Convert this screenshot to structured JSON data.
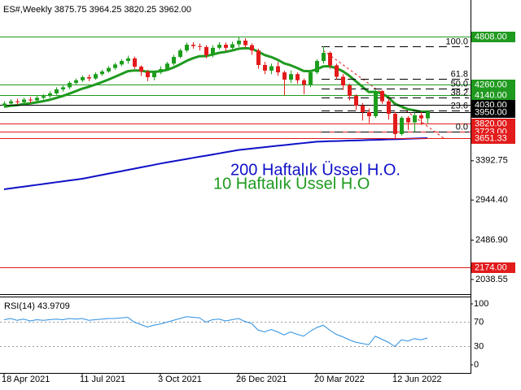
{
  "chart_data": [
    {
      "type": "candlestick",
      "title": "ES#,Weekly  3875.75 3964.25 3820.25 3962.00",
      "categories": [
        "18 Apr 2021",
        null,
        null,
        null,
        null,
        null,
        null,
        null,
        null,
        null,
        null,
        null,
        "11 Jul 2021",
        null,
        null,
        null,
        null,
        null,
        null,
        null,
        null,
        null,
        null,
        null,
        "3 Oct 2021",
        null,
        null,
        null,
        null,
        null,
        null,
        null,
        null,
        null,
        null,
        null,
        "26 Dec 2021",
        null,
        null,
        null,
        null,
        null,
        null,
        null,
        null,
        null,
        null,
        null,
        "20 Mar 2022",
        null,
        null,
        null,
        null,
        null,
        null,
        null,
        null,
        null,
        null,
        null,
        "12 Jun 2022",
        null,
        null,
        null,
        null,
        null
      ],
      "open": [
        4020,
        4045,
        4070,
        4060,
        4090,
        4080,
        4110,
        4130,
        4160,
        4206,
        4230,
        4280,
        4310,
        4345,
        4330,
        4380,
        4410,
        4450,
        4490,
        4530,
        4560,
        4465,
        4410,
        4345,
        4400,
        4438,
        4500,
        4576,
        4650,
        4715,
        4700,
        4690,
        4595,
        4680,
        4715,
        4680,
        4720,
        4762,
        4710,
        4650,
        4484,
        4420,
        4470,
        4400,
        4317,
        4380,
        4310,
        4260,
        4400,
        4530,
        4623,
        4480,
        4350,
        4252,
        4132,
        4020,
        3947,
        3900,
        4187,
        4070,
        3928,
        3697,
        3882,
        3830,
        3910,
        3875.75
      ],
      "high": [
        4070,
        4095,
        4100,
        4110,
        4120,
        4130,
        4150,
        4185,
        4230,
        4250,
        4300,
        4330,
        4365,
        4375,
        4400,
        4430,
        4470,
        4510,
        4550,
        4590,
        4580,
        4480,
        4430,
        4420,
        4470,
        4520,
        4600,
        4670,
        4740,
        4745,
        4730,
        4710,
        4710,
        4745,
        4740,
        4750,
        4808,
        4790,
        4730,
        4670,
        4520,
        4500,
        4520,
        4420,
        4420,
        4400,
        4330,
        4420,
        4550,
        4697,
        4640,
        4500,
        4380,
        4270,
        4150,
        4050,
        3990,
        4200,
        4200,
        4100,
        3950,
        3900,
        3900,
        3940,
        3950,
        3964.25
      ],
      "low": [
        4000,
        4025,
        4030,
        4040,
        4050,
        4060,
        4090,
        4110,
        4145,
        4180,
        4210,
        4260,
        4290,
        4300,
        4315,
        4360,
        4395,
        4430,
        4470,
        4500,
        4440,
        4360,
        4300,
        4310,
        4380,
        4420,
        4480,
        4560,
        4630,
        4670,
        4650,
        4560,
        4570,
        4660,
        4640,
        4650,
        4690,
        4680,
        4600,
        4440,
        4380,
        4380,
        4360,
        4140,
        4280,
        4270,
        4150,
        4230,
        4380,
        4500,
        4440,
        4320,
        4200,
        4080,
        3970,
        3850,
        3820,
        3880,
        4040,
        3860,
        3640,
        3680,
        3740,
        3720,
        3800,
        3820.25
      ],
      "close": [
        4045,
        4070,
        4060,
        4090,
        4080,
        4110,
        4130,
        4160,
        4206,
        4230,
        4280,
        4310,
        4345,
        4330,
        4380,
        4410,
        4450,
        4490,
        4530,
        4560,
        4465,
        4410,
        4345,
        4400,
        4438,
        4500,
        4576,
        4650,
        4715,
        4700,
        4690,
        4595,
        4680,
        4715,
        4680,
        4720,
        4762,
        4710,
        4650,
        4484,
        4420,
        4470,
        4400,
        4317,
        4380,
        4310,
        4260,
        4400,
        4530,
        4623,
        4480,
        4350,
        4252,
        4132,
        4020,
        3947,
        3900,
        4187,
        4070,
        3928,
        3697,
        3882,
        3830,
        3910,
        3875.75,
        3962
      ],
      "up_color": "#1c9e1c",
      "down_color": "#e21b1b",
      "lines": [
        {
          "color": "#1010c8",
          "values": [
            3067,
            3077,
            3087,
            3097,
            3107,
            3117,
            3127,
            3137,
            3147,
            3157,
            3167,
            3177,
            3187,
            3201,
            3216,
            3230,
            3245,
            3259,
            3273,
            3288,
            3302,
            3317,
            3331,
            3345,
            3360,
            3373,
            3386,
            3399,
            3412,
            3425,
            3438,
            3450,
            3463,
            3476,
            3489,
            3502,
            3515,
            3523,
            3531,
            3539,
            3547,
            3555,
            3563,
            3570,
            3578,
            3586,
            3594,
            3602,
            3610,
            3612,
            3615,
            3617,
            3619,
            3622,
            3624,
            3626,
            3629,
            3631,
            3633,
            3636,
            3638,
            3640,
            3643,
            3645,
            3648,
            3650
          ]
        },
        {
          "color": "#1f9a1f",
          "values": [
            4008,
            4019,
            4026,
            4038,
            4046,
            4058,
            4071,
            4087,
            4108,
            4130,
            4157,
            4185,
            4214,
            4235,
            4261,
            4288,
            4317,
            4348,
            4381,
            4413,
            4422,
            4420,
            4407,
            4406,
            4412,
            4428,
            4455,
            4490,
            4530,
            4561,
            4584,
            4586,
            4603,
            4623,
            4633,
            4649,
            4669,
            4676,
            4671,
            4637,
            4598,
            4575,
            4544,
            4503,
            4481,
            4450,
            4416,
            4413,
            4434,
            4468,
            4470,
            4448,
            4413,
            4362,
            4300,
            4237,
            4176,
            4178,
            4159,
            4117,
            4041,
            4012,
            3979,
            3967,
            3951,
            3953
          ]
        }
      ],
      "annotations": [
        {
          "text": "200 Haftalık Üssel H.O.",
          "color": "#1010c8"
        },
        {
          "text": "10 Haftalık Üssel H.O",
          "color": "#1f9a1f"
        }
      ],
      "levels": [
        {
          "value": 4808,
          "label": "4808.00",
          "color": "#1f9a1f"
        },
        {
          "value": 4260,
          "label": "4260.00",
          "color": "#1f9a1f"
        },
        {
          "value": 4140,
          "label": "4140.00",
          "color": "#1f9a1f"
        },
        {
          "value": 4030,
          "label": "4030.00",
          "color": "#000000"
        },
        {
          "value": 3950,
          "label": "3950.00",
          "color": "#000000"
        },
        {
          "value": 3820,
          "label": "3820.00",
          "color": "#e21b1b"
        },
        {
          "value": 3723,
          "label": "3723.00",
          "color": "#e21b1b"
        },
        {
          "value": 3651.33,
          "label": "3651.33",
          "color": "#e21b1b"
        },
        {
          "value": 2174,
          "label": "2174.00",
          "color": "#e21b1b"
        }
      ],
      "fib": [
        {
          "label": "100.0",
          "value": 4697
        },
        {
          "label": "61.8",
          "value": 4326
        },
        {
          "label": "50.0",
          "value": 4215
        },
        {
          "label": "38.2",
          "value": 4113
        },
        {
          "label": "23.6",
          "value": 3965
        },
        {
          "label": "0.0",
          "value": 3723
        }
      ],
      "ylim": [
        1890,
        5151
      ],
      "yticks": [
        2038.55,
        {
          "value": 2486.9,
          "label": "2486.90"
        },
        {
          "value": 2944.4,
          "label": "2944.40"
        },
        3392.75
      ]
    },
    {
      "type": "line",
      "title": "RSI(14) 43.9709",
      "color": "#2b8fe0",
      "values": [
        74,
        76,
        73,
        75,
        72,
        74,
        73,
        74,
        75,
        74,
        76,
        75,
        76,
        73,
        74,
        75,
        76,
        76,
        77,
        78,
        70,
        66,
        62,
        65,
        67,
        70,
        73,
        76,
        79,
        78,
        77,
        70,
        74,
        75,
        72,
        74,
        76,
        71,
        68,
        57,
        54,
        58,
        54,
        49,
        54,
        50,
        47,
        55,
        61,
        65,
        57,
        50,
        46,
        41,
        37,
        35,
        33,
        47,
        42,
        37,
        30,
        41,
        39,
        43,
        41,
        43.9709
      ],
      "ylim": [
        0,
        100
      ],
      "yticks": [
        0,
        30,
        70,
        100
      ]
    }
  ]
}
